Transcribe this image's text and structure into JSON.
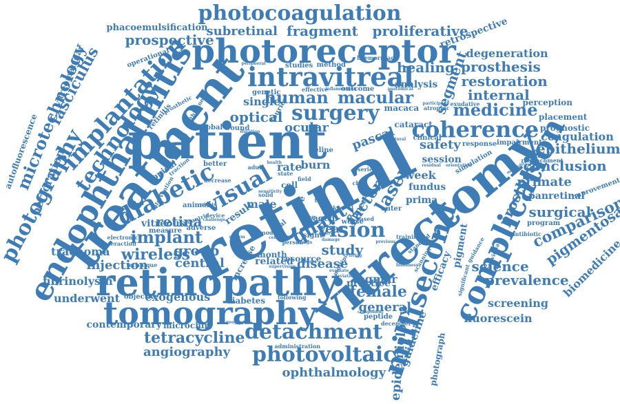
{
  "color": "#3e7cb6",
  "words": {
    "retinal": "retinal",
    "patient": "patient",
    "vitrectomy": "vitrectomy",
    "treatment": "treatment",
    "retinopathy": "retinopathy",
    "photoreceptor": "photoreceptor",
    "endophthalmitis": "endophthalmitis",
    "tomography": "tomography",
    "photocoagulation": "photocoagulation",
    "intravitreal": "intravitreal",
    "surgery": "surgery",
    "coherence": "coherence",
    "complication": "complication",
    "millisecond": "millisecond",
    "implantation": "implantation",
    "technology": "technology",
    "photography": "photography",
    "microtechnology": "microtechnology",
    "diabetic": "diabetic",
    "visual": "visual",
    "vision": "vision",
    "detachment": "detachment",
    "photovoltaic": "photovoltaic",
    "human": "human",
    "macular": "macular",
    "medicine": "medicine",
    "fragment": "fragment",
    "proliferative": "proliferative",
    "prospective": "prospective",
    "subretinal": "subretinal",
    "phacoemulsification": "phacoemulsification",
    "optical": "optical",
    "single": "single",
    "implant": "implant",
    "retina": "retina",
    "wireless": "wireless",
    "group": "group",
    "central": "central",
    "injection": "injection",
    "laser": "laser",
    "quality": "quality",
    "factor": "factor",
    "study": "study",
    "disease": "disease",
    "female": "female",
    "general": "general",
    "logmar": "logmar",
    "practice": "practice",
    "tetracycline": "tetracycline",
    "angiography": "angiography",
    "ophthalmology": "ophthalmology",
    "fibrinolysin": "fibrinolysin",
    "underwent": "underwent",
    "exogenous": "exogenous",
    "objective": "objective",
    "diabetes": "diabetes",
    "contemporary": "contemporary",
    "microchip": "microchip",
    "trachoma": "trachoma",
    "vitreous": "vitreous",
    "measure": "measure",
    "perforation": "perforation",
    "fasciculus": "fasciculus",
    "autofluorescence": "autofluorescence",
    "vitreomacular": "vitreomacular",
    "degeneration": "degeneration",
    "prosthesis": "prosthesis",
    "restoration": "restoration",
    "internal": "internal",
    "healing": "healing",
    "analysis": "analysis",
    "segment": "segment",
    "retrospective": "retrospective",
    "perception": "perception",
    "placement": "placement",
    "prognostic": "prognostic",
    "coagulation": "coagulation",
    "epithelium": "epithelium",
    "conclusion": "conclusion",
    "primate": "primate",
    "panretinal": "panretinal",
    "surgical": "surgical",
    "comparison": "comparison",
    "pigmentosa": "pigmentosa",
    "biomedicine": "biomedicine",
    "prevalence": "prevalence",
    "science": "science",
    "prostheses": "prostheses",
    "screening": "screening",
    "fluorescein": "fluorescein",
    "epidemiology": "epidemiology",
    "guideline": "guideline",
    "photograph": "photograph",
    "efficacy": "efficacy",
    "pigment": "pigment",
    "safety": "safety",
    "session": "session",
    "week": "week",
    "fundus": "fundus",
    "prima": "prima",
    "cataract": "cataract",
    "clinical": "clinical",
    "macaca": "macaca",
    "program": "program",
    "improvement": "improvement",
    "antibiotic": "antibiotic",
    "individual": "individual",
    "impairment": "impairment",
    "reattachment": "reattachment",
    "response": "response",
    "exudative": "exudative",
    "atrophic": "atrophic",
    "outcome": "outcome",
    "effective": "effective",
    "inflammation": "inflammation",
    "genetic": "genetic",
    "studies": "studies",
    "method": "method",
    "haemorrhage": "haemorrhage",
    "operational": "operational",
    "peripheral": "peripheral",
    "retinitis": "retinitis",
    "prosthetic": "prosthetic",
    "fourier": "fourier",
    "ocular": "ocular",
    "global": "global",
    "wound": "wound",
    "pascal": "pascal",
    "feline": "feline",
    "burn": "burn",
    "rate": "rate",
    "topical": "topical",
    "better": "better",
    "male": "male",
    "cell": "cell",
    "year": "year",
    "aged": "aged",
    "worse": "worse",
    "inner": "inner",
    "outer": "outer",
    "result": "result",
    "animal": "animal",
    "adverse": "adverse",
    "month": "month",
    "related": "related",
    "resource": "resource",
    "increase": "increase",
    "person": "person",
    "sight": "sight",
    "trial": "trial",
    "risk": "risk",
    "final": "final",
    "case": "case",
    "eye": "eye",
    "peptide": "peptide",
    "december": "december",
    "significant": "significant",
    "component": "component",
    "following": "following",
    "geographic": "geographic",
    "administration": "administration",
    "supervision": "supervision",
    "electronic": "electronic",
    "interaction": "interaction",
    "technique": "technique",
    "solid": "solid",
    "based": "based",
    "device": "device",
    "challenge": "challenge",
    "countrie": "countrie",
    "intervention": "intervention",
    "traction": "traction",
    "decrease": "decrease",
    "adult": "adult",
    "severe": "severe",
    "morbidity": "morbidity",
    "residual": "residual",
    "orientation": "orientation",
    "simulation": "simulation",
    "natural": "natural",
    "standard": "standard",
    "blindness": "blindness",
    "scanning": "scanning",
    "training": "training",
    "previous": "previous",
    "system": "system",
    "model": "model",
    "design": "design",
    "center": "center",
    "update": "update",
    "evaluate": "evaluate",
    "deviation": "deviation",
    "multiple": "multiple",
    "living": "living",
    "chip": "chip",
    "series": "series",
    "state": "state",
    "field": "field",
    "health": "health",
    "sensitivity": "sensitivity",
    "minute": "minute",
    "thickness": "thickness",
    "duration": "duration",
    "anatomical": "anatomical",
    "participant": "participant",
    "guidance": "guidance",
    "damage": "damage"
  }
}
